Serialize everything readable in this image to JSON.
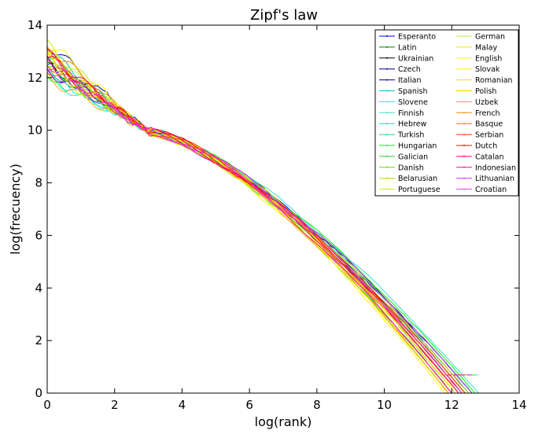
{
  "chart_data": {
    "type": "line",
    "title": "Zipf's law",
    "xlabel": "log(rank)",
    "ylabel": "log(frecuency)",
    "xlim": [
      0,
      14
    ],
    "ylim": [
      0,
      14
    ],
    "xticks": [
      "0",
      "2",
      "4",
      "6",
      "8",
      "10",
      "12",
      "14"
    ],
    "yticks": [
      "0",
      "2",
      "4",
      "6",
      "8",
      "10",
      "12",
      "14"
    ],
    "grid": false,
    "legend_position": "top-right",
    "legend_columns": 2,
    "series": [
      {
        "name": "Esperanto",
        "color": "#0000ff",
        "start": 12.5,
        "end_x": 12.5
      },
      {
        "name": "Latin",
        "color": "#008000",
        "start": 12.4,
        "end_x": 12.2
      },
      {
        "name": "Ukrainian",
        "color": "#000000",
        "start": 12.6,
        "end_x": 12.6
      },
      {
        "name": "Czech",
        "color": "#000080",
        "start": 12.3,
        "end_x": 12.4
      },
      {
        "name": "Italian",
        "color": "#00008b",
        "start": 13.3,
        "end_x": 12.3
      },
      {
        "name": "Spanish",
        "color": "#00bfbf",
        "start": 13.0,
        "end_x": 12.4
      },
      {
        "name": "Slovene",
        "color": "#00ffff",
        "start": 12.2,
        "end_x": 12.3
      },
      {
        "name": "Finnish",
        "color": "#40e0d0",
        "start": 12.0,
        "end_x": 12.8
      },
      {
        "name": "Hebrew",
        "color": "#00e5c0",
        "start": 12.1,
        "end_x": 12.5
      },
      {
        "name": "Turkish",
        "color": "#20d0a0",
        "start": 12.4,
        "end_x": 12.6
      },
      {
        "name": "Hungarian",
        "color": "#00ff00",
        "start": 12.2,
        "end_x": 12.7
      },
      {
        "name": "Galician",
        "color": "#33cc33",
        "start": 12.7,
        "end_x": 12.0
      },
      {
        "name": "Danish",
        "color": "#66dd00",
        "start": 12.8,
        "end_x": 12.1
      },
      {
        "name": "Belarusian",
        "color": "#aadd00",
        "start": 12.5,
        "end_x": 11.9
      },
      {
        "name": "Portuguese",
        "color": "#ccee00",
        "start": 13.2,
        "end_x": 12.0
      },
      {
        "name": "German",
        "color": "#bbee44",
        "start": 12.9,
        "end_x": 12.4
      },
      {
        "name": "Malay",
        "color": "#eeee00",
        "start": 12.6,
        "end_x": 11.9
      },
      {
        "name": "English",
        "color": "#ffff00",
        "start": 13.4,
        "end_x": 11.8
      },
      {
        "name": "Slovak",
        "color": "#ffee00",
        "start": 12.3,
        "end_x": 12.2
      },
      {
        "name": "Romanian",
        "color": "#ffd700",
        "start": 12.9,
        "end_x": 12.1
      },
      {
        "name": "Polish",
        "color": "#ffcc00",
        "start": 12.7,
        "end_x": 12.5
      },
      {
        "name": "Uzbek",
        "color": "#ffaa00",
        "start": 12.0,
        "end_x": 11.9
      },
      {
        "name": "French",
        "color": "#ff8800",
        "start": 13.2,
        "end_x": 12.3
      },
      {
        "name": "Basque",
        "color": "#ff6633",
        "start": 12.4,
        "end_x": 12.2
      },
      {
        "name": "Serbian",
        "color": "#ff3300",
        "start": 12.5,
        "end_x": 12.4
      },
      {
        "name": "Dutch",
        "color": "#ff0000",
        "start": 12.8,
        "end_x": 12.3
      },
      {
        "name": "Catalan",
        "color": "#ff0066",
        "start": 12.9,
        "end_x": 12.2
      },
      {
        "name": "Indonesian",
        "color": "#ff00aa",
        "start": 12.5,
        "end_x": 12.0
      },
      {
        "name": "Lithuanian",
        "color": "#cc33ff",
        "start": 12.3,
        "end_x": 12.6
      },
      {
        "name": "Croatian",
        "color": "#ff33cc",
        "start": 12.6,
        "end_x": 12.3
      }
    ]
  }
}
